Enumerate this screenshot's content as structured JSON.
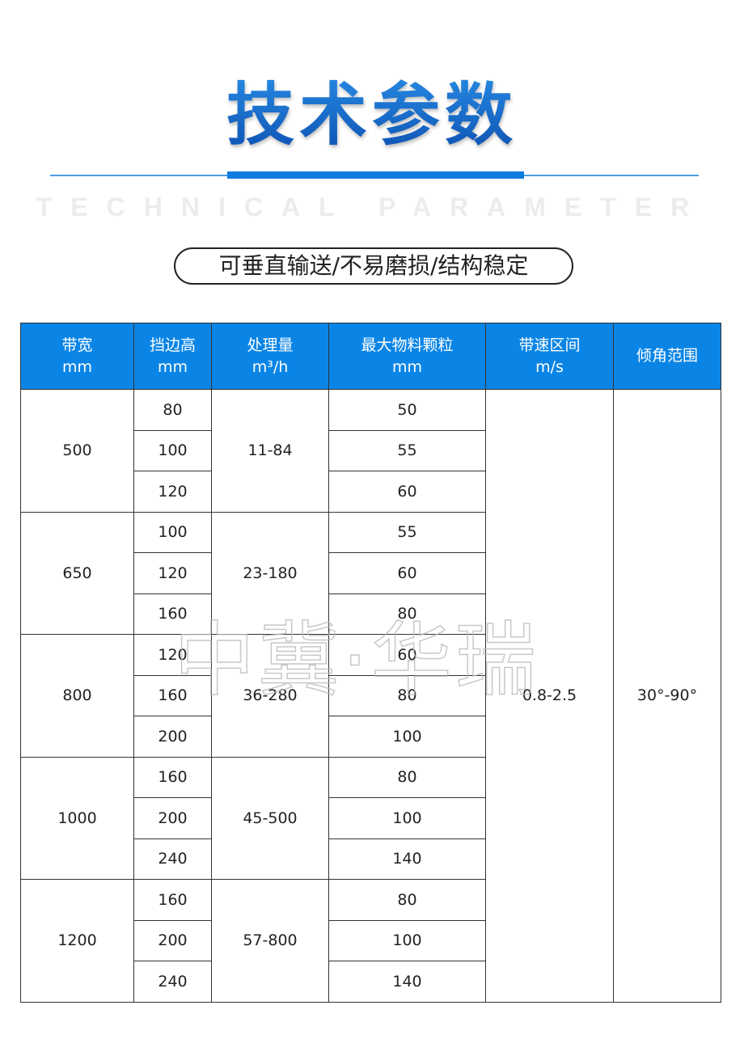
{
  "title": "技术参数",
  "subtitle_en": "TECHNICAL PARAMETER",
  "tagline": "可垂直输送/不易磨损/结构稳定",
  "watermark": "中冀·华瑞",
  "colors": {
    "accent": "#0a85e6",
    "title_blue": "#1566c8"
  },
  "table": {
    "headers": [
      {
        "l1": "带宽",
        "l2": "mm"
      },
      {
        "l1": "挡边高",
        "l2": "mm"
      },
      {
        "l1": "处理量",
        "l2": "m³/h"
      },
      {
        "l1": "最大物料颗粒",
        "l2": "mm"
      },
      {
        "l1": "带速区间",
        "l2": "m/s"
      },
      {
        "l1": "倾角范围",
        "l2": ""
      }
    ],
    "speed": "0.8-2.5",
    "angle": "30°-90°",
    "groups": [
      {
        "width": "500",
        "capacity": "11-84",
        "rows": [
          {
            "h": "80",
            "p": "50"
          },
          {
            "h": "100",
            "p": "55"
          },
          {
            "h": "120",
            "p": "60"
          }
        ]
      },
      {
        "width": "650",
        "capacity": "23-180",
        "rows": [
          {
            "h": "100",
            "p": "55"
          },
          {
            "h": "120",
            "p": "60"
          },
          {
            "h": "160",
            "p": "80"
          }
        ]
      },
      {
        "width": "800",
        "capacity": "36-280",
        "rows": [
          {
            "h": "120",
            "p": "60"
          },
          {
            "h": "160",
            "p": "80"
          },
          {
            "h": "200",
            "p": "100"
          }
        ]
      },
      {
        "width": "1000",
        "capacity": "45-500",
        "rows": [
          {
            "h": "160",
            "p": "80"
          },
          {
            "h": "200",
            "p": "100"
          },
          {
            "h": "240",
            "p": "140"
          }
        ]
      },
      {
        "width": "1200",
        "capacity": "57-800",
        "rows": [
          {
            "h": "160",
            "p": "80"
          },
          {
            "h": "200",
            "p": "100"
          },
          {
            "h": "240",
            "p": "140"
          }
        ]
      }
    ]
  }
}
